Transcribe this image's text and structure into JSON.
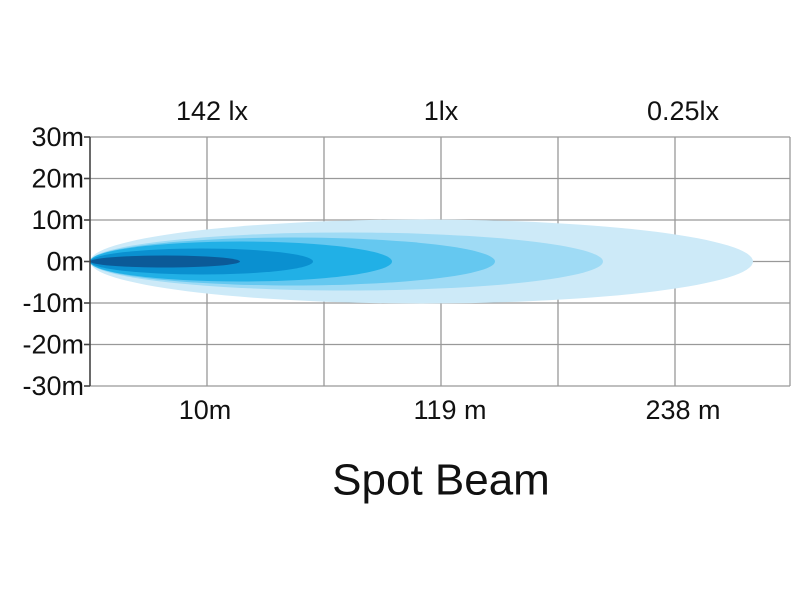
{
  "y_axis_labels": [
    "30m",
    "20m",
    "10m",
    "0m",
    "-10m",
    "-20m",
    "-30m"
  ],
  "top_labels": [
    "142 lx",
    "1lx",
    "0.25lx"
  ],
  "bottom_labels": [
    "10m",
    "119 m",
    "238 m"
  ],
  "title": "Spot Beam"
}
